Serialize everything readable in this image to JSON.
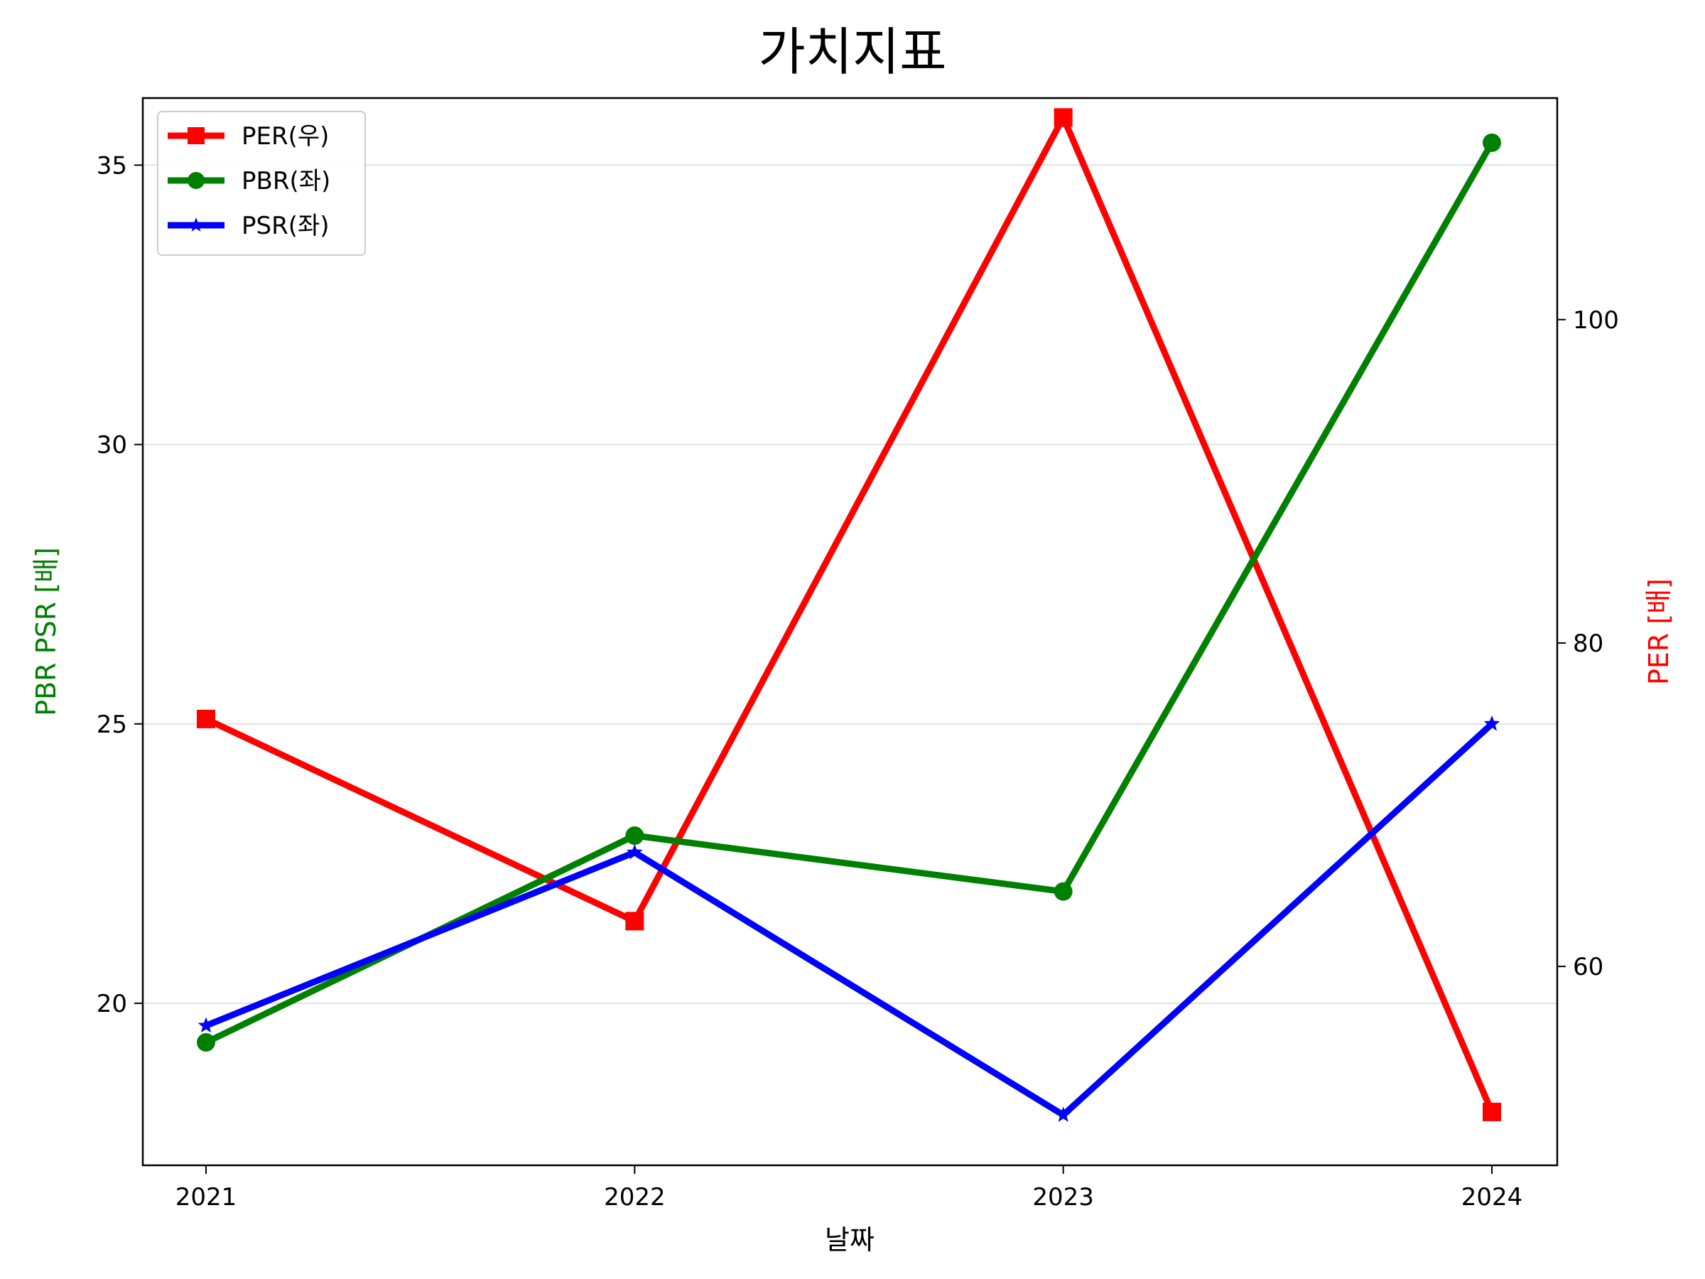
{
  "chart_data": {
    "type": "line",
    "title": "가치지표",
    "xlabel": "날짜",
    "ylabel_left": "PBR PSR [배]",
    "ylabel_right": "PER [배]",
    "categories": [
      "2021",
      "2022",
      "2023",
      "2024"
    ],
    "ylim_left": [
      17.1,
      36.2
    ],
    "yticks_left": [
      20,
      25,
      30,
      35
    ],
    "ylim_right": [
      47.7,
      113.7
    ],
    "yticks_right": [
      60,
      80,
      100
    ],
    "grid": "horizontal",
    "legend_position": "upper-left",
    "series": [
      {
        "name": "PER(우)",
        "axis": "right",
        "color": "#ff0000",
        "marker": "square",
        "values": [
          75.3,
          62.8,
          112.5,
          51.0
        ]
      },
      {
        "name": "PBR(좌)",
        "axis": "left",
        "color": "#008000",
        "marker": "circle",
        "values": [
          19.3,
          23.0,
          22.0,
          35.4
        ]
      },
      {
        "name": "PSR(좌)",
        "axis": "left",
        "color": "#0000ff",
        "marker": "star",
        "values": [
          19.6,
          22.7,
          18.0,
          25.0
        ]
      }
    ],
    "colors": {
      "left_axis_label": "#008000",
      "right_axis_label": "#ff0000",
      "grid": "#d9d9d9"
    }
  }
}
